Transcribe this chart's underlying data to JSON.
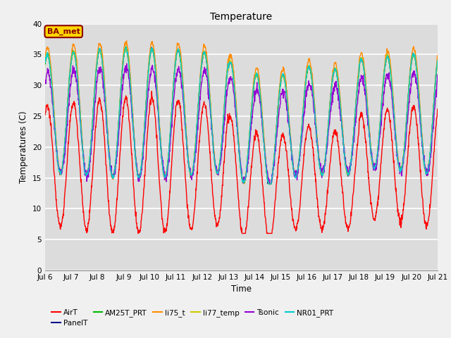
{
  "title": "Temperature",
  "ylabel": "Temperatures (C)",
  "xlabel": "Time",
  "ylim": [
    0,
    40
  ],
  "yticks": [
    0,
    5,
    10,
    15,
    20,
    25,
    30,
    35,
    40
  ],
  "xtick_labels": [
    "Jul 6",
    "Jul 7",
    "Jul 8",
    "Jul 9",
    "Jul 10",
    "Jul 11",
    "Jul 12",
    "Jul 13",
    "Jul 14",
    "Jul 15",
    "Jul 16",
    "Jul 17",
    "Jul 18",
    "Jul 19",
    "Jul 20",
    "Jul 21"
  ],
  "annotation_text": "BA_met",
  "annotation_color": "#8B0000",
  "annotation_bg": "#FFD700",
  "background_color": "#DCDCDC",
  "grid_color": "#FFFFFF",
  "fig_bg": "#F0F0F0",
  "series": [
    {
      "label": "AirT",
      "color": "#FF0000",
      "lw": 1.0
    },
    {
      "label": "PanelT",
      "color": "#00008B",
      "lw": 1.0
    },
    {
      "label": "AM25T_PRT",
      "color": "#00BB00",
      "lw": 1.0
    },
    {
      "label": "li75_t",
      "color": "#FF8C00",
      "lw": 1.0
    },
    {
      "label": "li77_temp",
      "color": "#CCCC00",
      "lw": 1.0
    },
    {
      "label": "Tsonic",
      "color": "#9400D3",
      "lw": 1.0
    },
    {
      "label": "NR01_PRT",
      "color": "#00CCCC",
      "lw": 1.0
    }
  ]
}
